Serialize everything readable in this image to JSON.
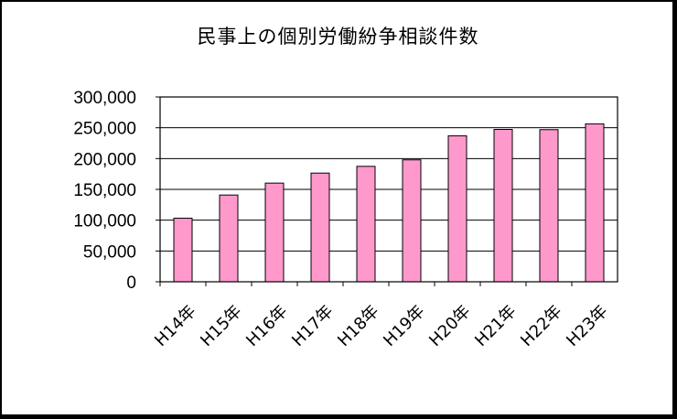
{
  "chart_data": {
    "type": "bar",
    "title": "民事上の個別労働紛争相談件数",
    "categories": [
      "H14年",
      "H15年",
      "H16年",
      "H17年",
      "H18年",
      "H19年",
      "H20年",
      "H21年",
      "H22年",
      "H23年"
    ],
    "values": [
      103194,
      140822,
      160166,
      176429,
      187387,
      197904,
      236993,
      247302,
      246907,
      256343
    ],
    "ylim": [
      0,
      300000
    ],
    "yticks": [
      0,
      50000,
      100000,
      150000,
      200000,
      250000,
      300000
    ],
    "ytick_labels": [
      "0",
      "50,000",
      "100,000",
      "150,000",
      "200,000",
      "250,000",
      "300,000"
    ],
    "grid": true,
    "legend": "none",
    "colors": {
      "bar_fill": "#ff99cc",
      "bar_stroke": "#000000",
      "gridline": "#000000"
    }
  }
}
